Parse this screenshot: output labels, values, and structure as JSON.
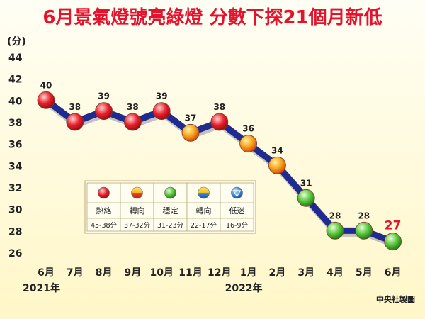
{
  "title": "6月景氣燈號亮綠燈 分數下探21個月新低",
  "credit": "中央社製圖",
  "chart_data": {
    "type": "line",
    "ylabel": "(分)",
    "ylim": [
      26,
      44
    ],
    "yticks": [
      26,
      28,
      30,
      32,
      34,
      36,
      38,
      40,
      42,
      44
    ],
    "categories": [
      "6月",
      "7月",
      "8月",
      "9月",
      "10月",
      "11月",
      "12月",
      "1月",
      "2月",
      "3月",
      "4月",
      "5月",
      "6月"
    ],
    "year_labels": [
      {
        "index": 0,
        "label": "2021年"
      },
      {
        "index": 7,
        "label": "2022年"
      }
    ],
    "values": [
      40,
      38,
      39,
      38,
      39,
      37,
      38,
      36,
      34,
      31,
      28,
      28,
      27
    ],
    "light_colors": [
      "red",
      "red",
      "red",
      "red",
      "red",
      "yellow-red",
      "red",
      "yellow-red",
      "yellow-red",
      "green",
      "green",
      "green",
      "green"
    ],
    "highlight_last_color": "#e4122c",
    "line_color": "#1f2b8f",
    "legend": [
      {
        "name": "熱絡",
        "range": "45-38分",
        "light": "red"
      },
      {
        "name": "轉向",
        "range": "37-32分",
        "light": "yellow-red"
      },
      {
        "name": "穩定",
        "range": "31-23分",
        "light": "green"
      },
      {
        "name": "轉向",
        "range": "22-17分",
        "light": "yellow-blue"
      },
      {
        "name": "低迷",
        "range": "16-9分",
        "light": "blue"
      }
    ]
  }
}
